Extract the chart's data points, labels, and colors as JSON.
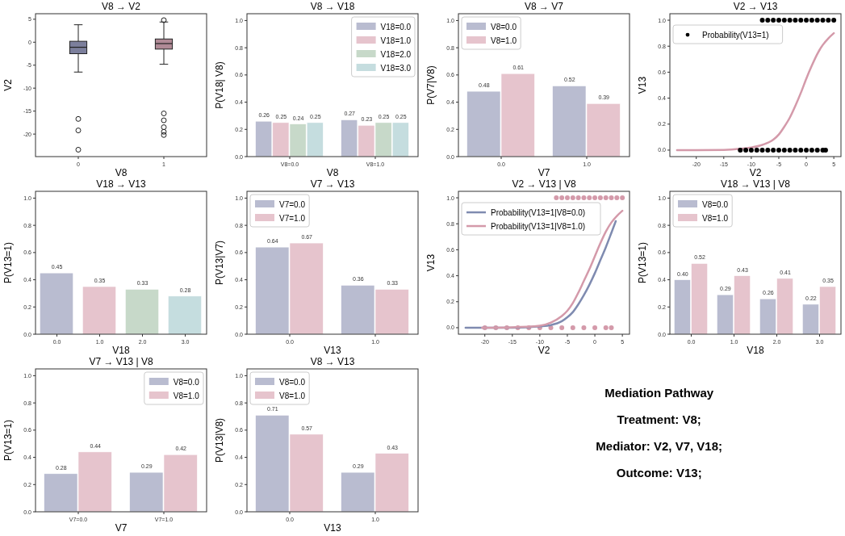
{
  "chart_data": [
    {
      "type": "box",
      "title": "V8 → V2",
      "xlabel": "V8",
      "ylabel": "V2",
      "categories": [
        "0",
        "1"
      ],
      "colors": [
        "#7c7f9c",
        "#b08a96"
      ],
      "ylim": [
        -24.9,
        6.2
      ],
      "yticks": [
        -20,
        -15,
        -10,
        -5,
        0,
        5
      ],
      "boxes": [
        {
          "low": -6.5,
          "q1": -2.5,
          "median": -1.1,
          "q3": 0.2,
          "high": 3.8,
          "outliers": [
            -16.7,
            -19.2,
            -23.4
          ]
        },
        {
          "low": -4.8,
          "q1": -1.5,
          "median": -0.3,
          "q3": 0.7,
          "high": 4.4,
          "outliers": [
            4.8,
            -15.5,
            -17,
            -18.5,
            -19.5,
            -20.2
          ]
        }
      ]
    },
    {
      "type": "bar",
      "title": "V8 → V18",
      "xlabel": "V8",
      "ylabel": "P(V18| V8)",
      "categories": [
        "V8=0.0",
        "V8=1.0"
      ],
      "ylim": [
        0,
        1.05
      ],
      "yticks": [
        {
          "value": 0,
          "label": "0.0"
        },
        {
          "value": 0.2,
          "label": "0.2"
        },
        {
          "value": 0.4,
          "label": "0.4"
        },
        {
          "value": 0.6,
          "label": "0.6"
        },
        {
          "value": 0.8,
          "label": "0.8"
        },
        {
          "value": 1,
          "label": "1.0"
        }
      ],
      "legend": "top right",
      "data_labels": true,
      "series": [
        {
          "name": "V18=0.0",
          "color": "#b9bcd0",
          "values": [
            0.26,
            0.27
          ]
        },
        {
          "name": "V18=1.0",
          "color": "#e6c4cd",
          "values": [
            0.25,
            0.23
          ]
        },
        {
          "name": "V18=2.0",
          "color": "#c7d9c9",
          "values": [
            0.24,
            0.25
          ]
        },
        {
          "name": "V18=3.0",
          "color": "#c5dddf",
          "values": [
            0.25,
            0.25
          ]
        }
      ]
    },
    {
      "type": "bar",
      "title": "V8 → V7",
      "xlabel": "V7",
      "ylabel": "P(V7|V8)",
      "categories": [
        "0.0",
        "1.0"
      ],
      "ylim": [
        0,
        1.05
      ],
      "yticks": [
        {
          "value": 0,
          "label": "0.0"
        },
        {
          "value": 0.2,
          "label": "0.2"
        },
        {
          "value": 0.4,
          "label": "0.4"
        },
        {
          "value": 0.6,
          "label": "0.6"
        },
        {
          "value": 0.8,
          "label": "0.8"
        },
        {
          "value": 1,
          "label": "1.0"
        }
      ],
      "legend": "top left",
      "data_labels": true,
      "series": [
        {
          "name": "V8=0.0",
          "color": "#b9bcd0",
          "values": [
            0.48,
            0.52
          ]
        },
        {
          "name": "V8=1.0",
          "color": "#e6c4cd",
          "values": [
            0.61,
            0.39
          ]
        }
      ]
    },
    {
      "type": "line",
      "title": "V2 → V13",
      "xlabel": "V2",
      "ylabel": "V13",
      "xlim": [
        -24.8,
        6.3
      ],
      "xticks": [
        -20,
        -15,
        -10,
        -5,
        0,
        5
      ],
      "ylim": [
        -0.05,
        1.05
      ],
      "yticks": [
        {
          "value": 0,
          "label": "0.0"
        },
        {
          "value": 0.2,
          "label": "0.2"
        },
        {
          "value": 0.4,
          "label": "0.4"
        },
        {
          "value": 0.6,
          "label": "0.6"
        },
        {
          "value": 0.8,
          "label": "0.8"
        },
        {
          "value": 1,
          "label": "1.0"
        }
      ],
      "legend": "top left",
      "series": [
        {
          "type": "line",
          "color": "#d49aaa",
          "x": [
            -23.5,
            -20,
            -15,
            -12,
            -10,
            -8,
            -6,
            -5,
            -4,
            -3,
            -2,
            -1,
            0,
            1,
            2,
            3,
            4,
            5
          ],
          "values": [
            0,
            0,
            0.002,
            0.01,
            0.02,
            0.04,
            0.08,
            0.12,
            0.18,
            0.25,
            0.34,
            0.44,
            0.55,
            0.65,
            0.74,
            0.81,
            0.86,
            0.9
          ]
        },
        {
          "type": "scatter",
          "name": "Probability(V13=1)",
          "color": "#000000",
          "marker": "circle",
          "x": [
            -8,
            -7,
            -6,
            -5,
            -4,
            -3,
            -2,
            -1,
            0,
            1,
            2,
            3,
            4,
            5,
            -12,
            -11,
            -10,
            -9,
            -8,
            -7,
            -6,
            -5,
            -4,
            -3,
            -2,
            -1,
            0,
            1,
            2,
            3,
            3.5
          ],
          "values": [
            1,
            1,
            1,
            1,
            1,
            1,
            1,
            1,
            1,
            1,
            1,
            1,
            1,
            1,
            0,
            0,
            0,
            0,
            0,
            0,
            0,
            0,
            0,
            0,
            0,
            0,
            0,
            0,
            0,
            0,
            0
          ]
        }
      ]
    },
    {
      "type": "bar",
      "title": "V18 → V13",
      "xlabel": "V18",
      "ylabel": "P(V13=1)",
      "categories": [
        "0.0",
        "1.0",
        "2.0",
        "3.0"
      ],
      "ylim": [
        0,
        1.05
      ],
      "yticks": [
        {
          "value": 0,
          "label": "0.0"
        },
        {
          "value": 0.2,
          "label": "0.2"
        },
        {
          "value": 0.4,
          "label": "0.4"
        },
        {
          "value": 0.6,
          "label": "0.6"
        },
        {
          "value": 0.8,
          "label": "0.8"
        },
        {
          "value": 1,
          "label": "1.0"
        }
      ],
      "data_labels": true,
      "values": [
        0.45,
        0.35,
        0.33,
        0.28
      ],
      "colors": [
        "#b9bcd0",
        "#e6c4cd",
        "#c7d9c9",
        "#c5dddf"
      ]
    },
    {
      "type": "bar",
      "title": "V7 → V13",
      "xlabel": "V13",
      "ylabel": "P(V13|V7)",
      "categories": [
        "0.0",
        "1.0"
      ],
      "ylim": [
        0,
        1.05
      ],
      "yticks": [
        {
          "value": 0,
          "label": "0.0"
        },
        {
          "value": 0.2,
          "label": "0.2"
        },
        {
          "value": 0.4,
          "label": "0.4"
        },
        {
          "value": 0.6,
          "label": "0.6"
        },
        {
          "value": 0.8,
          "label": "0.8"
        },
        {
          "value": 1,
          "label": "1.0"
        }
      ],
      "legend": "top left",
      "data_labels": true,
      "series": [
        {
          "name": "V7=0.0",
          "color": "#b9bcd0",
          "values": [
            0.64,
            0.36
          ]
        },
        {
          "name": "V7=1.0",
          "color": "#e6c4cd",
          "values": [
            0.67,
            0.33
          ]
        }
      ]
    },
    {
      "type": "line",
      "title": "V2 → V13 | V8",
      "xlabel": "V2",
      "ylabel": "V13",
      "xlim": [
        -24.8,
        6.3
      ],
      "xticks": [
        -20,
        -15,
        -10,
        -5,
        0,
        5
      ],
      "ylim": [
        -0.05,
        1.05
      ],
      "yticks": [
        {
          "value": 0,
          "label": "0.0"
        },
        {
          "value": 0.2,
          "label": "0.2"
        },
        {
          "value": 0.4,
          "label": "0.4"
        },
        {
          "value": 0.6,
          "label": "0.6"
        },
        {
          "value": 0.8,
          "label": "0.8"
        },
        {
          "value": 1,
          "label": "1.0"
        }
      ],
      "legend": "top left",
      "series": [
        {
          "type": "scatter",
          "color": "#d49aaa",
          "marker": "circle",
          "x": [
            -7,
            -6,
            -5,
            -4,
            -3,
            -2,
            -1,
            0,
            1,
            2,
            3,
            4,
            5,
            -20,
            -18,
            -16,
            -14,
            -12,
            -10,
            -8,
            -6,
            -4,
            -2,
            0,
            2,
            3
          ],
          "values": [
            1,
            1,
            1,
            1,
            1,
            1,
            1,
            1,
            1,
            1,
            1,
            1,
            1,
            0,
            0,
            0,
            0,
            0,
            0,
            0,
            0,
            0,
            0,
            0,
            0,
            0
          ]
        },
        {
          "type": "line",
          "name": "Probability(V13=1|V8=0.0)",
          "color": "#7f8bb0",
          "x": [
            -23.5,
            -15,
            -10,
            -8,
            -6,
            -5,
            -4,
            -3,
            -2,
            -1,
            0,
            1,
            2,
            3,
            3.8
          ],
          "values": [
            0,
            0,
            0.01,
            0.02,
            0.05,
            0.08,
            0.12,
            0.18,
            0.25,
            0.33,
            0.42,
            0.52,
            0.62,
            0.73,
            0.82
          ]
        },
        {
          "type": "line",
          "name": "Probability(V13=1|V8=1.0)",
          "color": "#d49aaa",
          "x": [
            -20.5,
            -15,
            -10,
            -8,
            -6,
            -5,
            -4,
            -3,
            -2,
            -1,
            0,
            1,
            2,
            3,
            4,
            5
          ],
          "values": [
            0,
            0.003,
            0.015,
            0.04,
            0.09,
            0.13,
            0.19,
            0.27,
            0.36,
            0.45,
            0.55,
            0.65,
            0.74,
            0.81,
            0.86,
            0.9
          ]
        }
      ]
    },
    {
      "type": "bar",
      "title": "V18 → V13 | V8",
      "xlabel": "V18",
      "ylabel": "P(V13=1)",
      "categories": [
        "0.0",
        "1.0",
        "2.0",
        "3.0"
      ],
      "ylim": [
        0,
        1.05
      ],
      "yticks": [
        {
          "value": 0,
          "label": "0.0"
        },
        {
          "value": 0.2,
          "label": "0.2"
        },
        {
          "value": 0.4,
          "label": "0.4"
        },
        {
          "value": 0.6,
          "label": "0.6"
        },
        {
          "value": 0.8,
          "label": "0.8"
        },
        {
          "value": 1,
          "label": "1.0"
        }
      ],
      "legend": "top left",
      "series": [
        {
          "name": "V8=0.0",
          "color": "#b9bcd0",
          "values": [
            0.4,
            0.29,
            0.26,
            0.22
          ],
          "value_labels": [
            "0.40",
            "0.29",
            "0.26",
            "0.22"
          ]
        },
        {
          "name": "V8=1.0",
          "color": "#e6c4cd",
          "values": [
            0.52,
            0.43,
            0.41,
            0.35
          ],
          "value_labels": [
            "0.52",
            "0.43",
            "0.41",
            "0.35"
          ]
        }
      ]
    },
    {
      "type": "bar",
      "title": "V7 → V13 | V8",
      "xlabel": "V7",
      "ylabel": "P(V13=1)",
      "categories": [
        "V7=0.0",
        "V7=1.0"
      ],
      "ylim": [
        0,
        1.05
      ],
      "yticks": [
        {
          "value": 0,
          "label": "0.0"
        },
        {
          "value": 0.2,
          "label": "0.2"
        },
        {
          "value": 0.4,
          "label": "0.4"
        },
        {
          "value": 0.6,
          "label": "0.6"
        },
        {
          "value": 0.8,
          "label": "0.8"
        },
        {
          "value": 1,
          "label": "1.0"
        }
      ],
      "legend": "top right",
      "data_labels": true,
      "series": [
        {
          "name": "V8=0.0",
          "color": "#b9bcd0",
          "values": [
            0.28,
            0.29
          ]
        },
        {
          "name": "V8=1.0",
          "color": "#e6c4cd",
          "values": [
            0.44,
            0.42
          ]
        }
      ]
    },
    {
      "type": "bar",
      "title": "V8 → V13",
      "xlabel": "V13",
      "ylabel": "P(V13|V8)",
      "categories": [
        "0.0",
        "1.0"
      ],
      "ylim": [
        0,
        1.05
      ],
      "yticks": [
        {
          "value": 0,
          "label": "0.0"
        },
        {
          "value": 0.2,
          "label": "0.2"
        },
        {
          "value": 0.4,
          "label": "0.4"
        },
        {
          "value": 0.6,
          "label": "0.6"
        },
        {
          "value": 0.8,
          "label": "0.8"
        },
        {
          "value": 1,
          "label": "1.0"
        }
      ],
      "legend": "top left",
      "data_labels": true,
      "series": [
        {
          "name": "V8=0.0",
          "color": "#b9bcd0",
          "values": [
            0.71,
            0.29
          ]
        },
        {
          "name": "V8=1.0",
          "color": "#e6c4cd",
          "values": [
            0.57,
            0.43
          ]
        }
      ]
    },
    {
      "type": "other",
      "title": "Mediation Pathway",
      "annotations": [
        "Treatment: V8;",
        "Mediator: V2, V7, V18;",
        "Outcome: V13;"
      ]
    }
  ]
}
